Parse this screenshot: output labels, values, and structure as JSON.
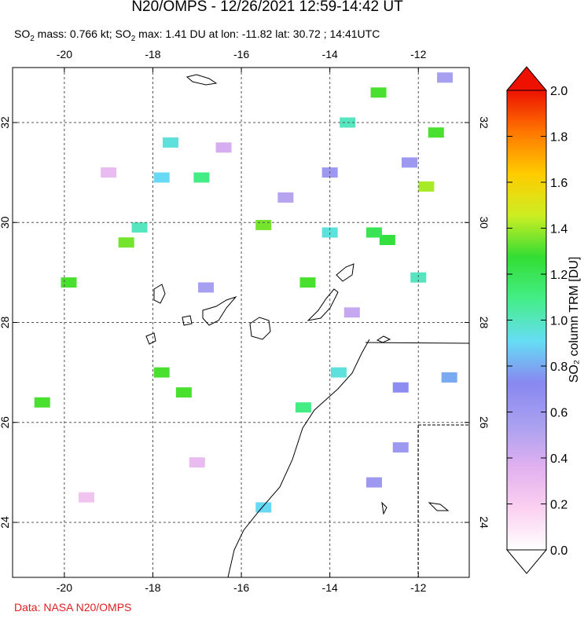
{
  "header": {
    "title": "N20/OMPS - 12/26/2021 12:59-14:42 UT",
    "subtitle": [
      "SO",
      "2",
      " mass: 0.766 kt; SO",
      "2",
      " max: 1.41 DU at lon: -11.82 lat: 30.72 ; 14:41UTC"
    ]
  },
  "map": {
    "xlim": [
      -21.17,
      -10.85
    ],
    "ylim": [
      22.9,
      33.1
    ],
    "xticks": [
      -20,
      -18,
      -16,
      -14,
      -12
    ],
    "yticks": [
      24,
      26,
      28,
      30,
      32
    ],
    "grid": true,
    "pixels": [
      [
        -11.82,
        30.72,
        1.41
      ],
      [
        -15.5,
        29.95,
        1.35
      ],
      [
        -12.7,
        29.65,
        1.25
      ],
      [
        -13.0,
        29.8,
        1.2
      ],
      [
        -11.6,
        31.8,
        1.3
      ],
      [
        -12.9,
        32.6,
        1.3
      ],
      [
        -14.5,
        28.8,
        1.3
      ],
      [
        -18.6,
        29.6,
        1.35
      ],
      [
        -19.9,
        28.8,
        1.3
      ],
      [
        -17.8,
        27.0,
        1.3
      ],
      [
        -17.3,
        26.6,
        1.3
      ],
      [
        -14.6,
        26.3,
        1.1
      ],
      [
        -13.8,
        27.0,
        0.95
      ],
      [
        -13.6,
        32.0,
        1.0
      ],
      [
        -14.0,
        29.8,
        0.95
      ],
      [
        -12.0,
        28.9,
        1.0
      ],
      [
        -18.3,
        29.9,
        1.0
      ],
      [
        -16.9,
        30.9,
        1.1
      ],
      [
        -17.6,
        31.6,
        0.95
      ],
      [
        -15.5,
        24.3,
        0.9
      ],
      [
        -12.4,
        26.7,
        0.7
      ],
      [
        -11.3,
        26.9,
        0.8
      ],
      [
        -11.4,
        32.9,
        0.55
      ],
      [
        -20.5,
        26.4,
        1.3
      ],
      [
        -17.8,
        30.9,
        0.9
      ],
      [
        -13.0,
        24.8,
        0.6
      ],
      [
        -12.4,
        25.5,
        0.6
      ],
      [
        -14.0,
        31.0,
        0.6
      ],
      [
        -15.0,
        30.5,
        0.5
      ],
      [
        -16.4,
        31.5,
        0.4
      ],
      [
        -19.0,
        31.0,
        0.3
      ],
      [
        -13.5,
        28.2,
        0.45
      ],
      [
        -17.0,
        25.2,
        0.3
      ],
      [
        -19.5,
        24.5,
        0.25
      ],
      [
        -12.2,
        31.2,
        0.6
      ],
      [
        -16.8,
        28.7,
        0.55
      ]
    ]
  },
  "colorbar": {
    "label": "SO₂ column TRM [DU]",
    "lim": [
      0,
      2
    ],
    "ticks": [
      {
        "value": 0,
        "label": "0.0"
      },
      {
        "value": 0.2,
        "label": "0.2"
      },
      {
        "value": 0.4,
        "label": "0.4"
      },
      {
        "value": 0.6,
        "label": "0.6"
      },
      {
        "value": 0.8,
        "label": "0.8"
      },
      {
        "value": 1,
        "label": "1.0"
      },
      {
        "value": 1.2,
        "label": "1.2"
      },
      {
        "value": 1.4,
        "label": "1.4"
      },
      {
        "value": 1.6,
        "label": "1.6"
      },
      {
        "value": 1.8,
        "label": "1.8"
      },
      {
        "value": 2,
        "label": "2.0"
      }
    ],
    "colormap": [
      "#ffffff",
      "#fbd0f0",
      "#e0b0f0",
      "#a8a0f0",
      "#8888f0",
      "#66ddf5",
      "#44ee88",
      "#33dd33",
      "#ccee22",
      "#ffcc00",
      "#ff7700",
      "#ee1100"
    ]
  },
  "footer": "Data: NASA N20/OMPS"
}
